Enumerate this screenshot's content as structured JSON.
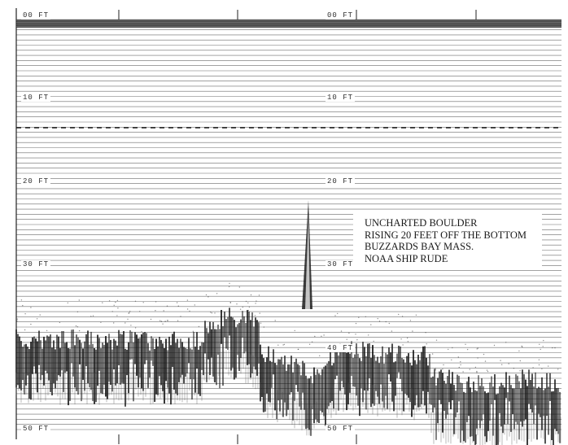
{
  "figure": {
    "type": "echosounder-recording",
    "colors": {
      "paper": "#ffffff",
      "trace": "#111111",
      "grid": "#3a3a3a"
    }
  },
  "depth_scale": {
    "left": [
      "00 FT",
      "10 FT",
      "20 FT",
      "30 FT",
      "40 FT",
      "50 FT"
    ],
    "right": [
      "00 FT",
      "10 FT",
      "20 FT",
      "30 FT",
      "40 FT",
      "50 FT"
    ],
    "min_ft": 0,
    "max_ft": 50
  },
  "annotation": {
    "lines": [
      "UNCHARTED BOULDER",
      "RISING 20 FEET OFF THE BOTTOM",
      "BUZZARDS BAY MASS.",
      "NOAA SHIP RUDE"
    ]
  }
}
